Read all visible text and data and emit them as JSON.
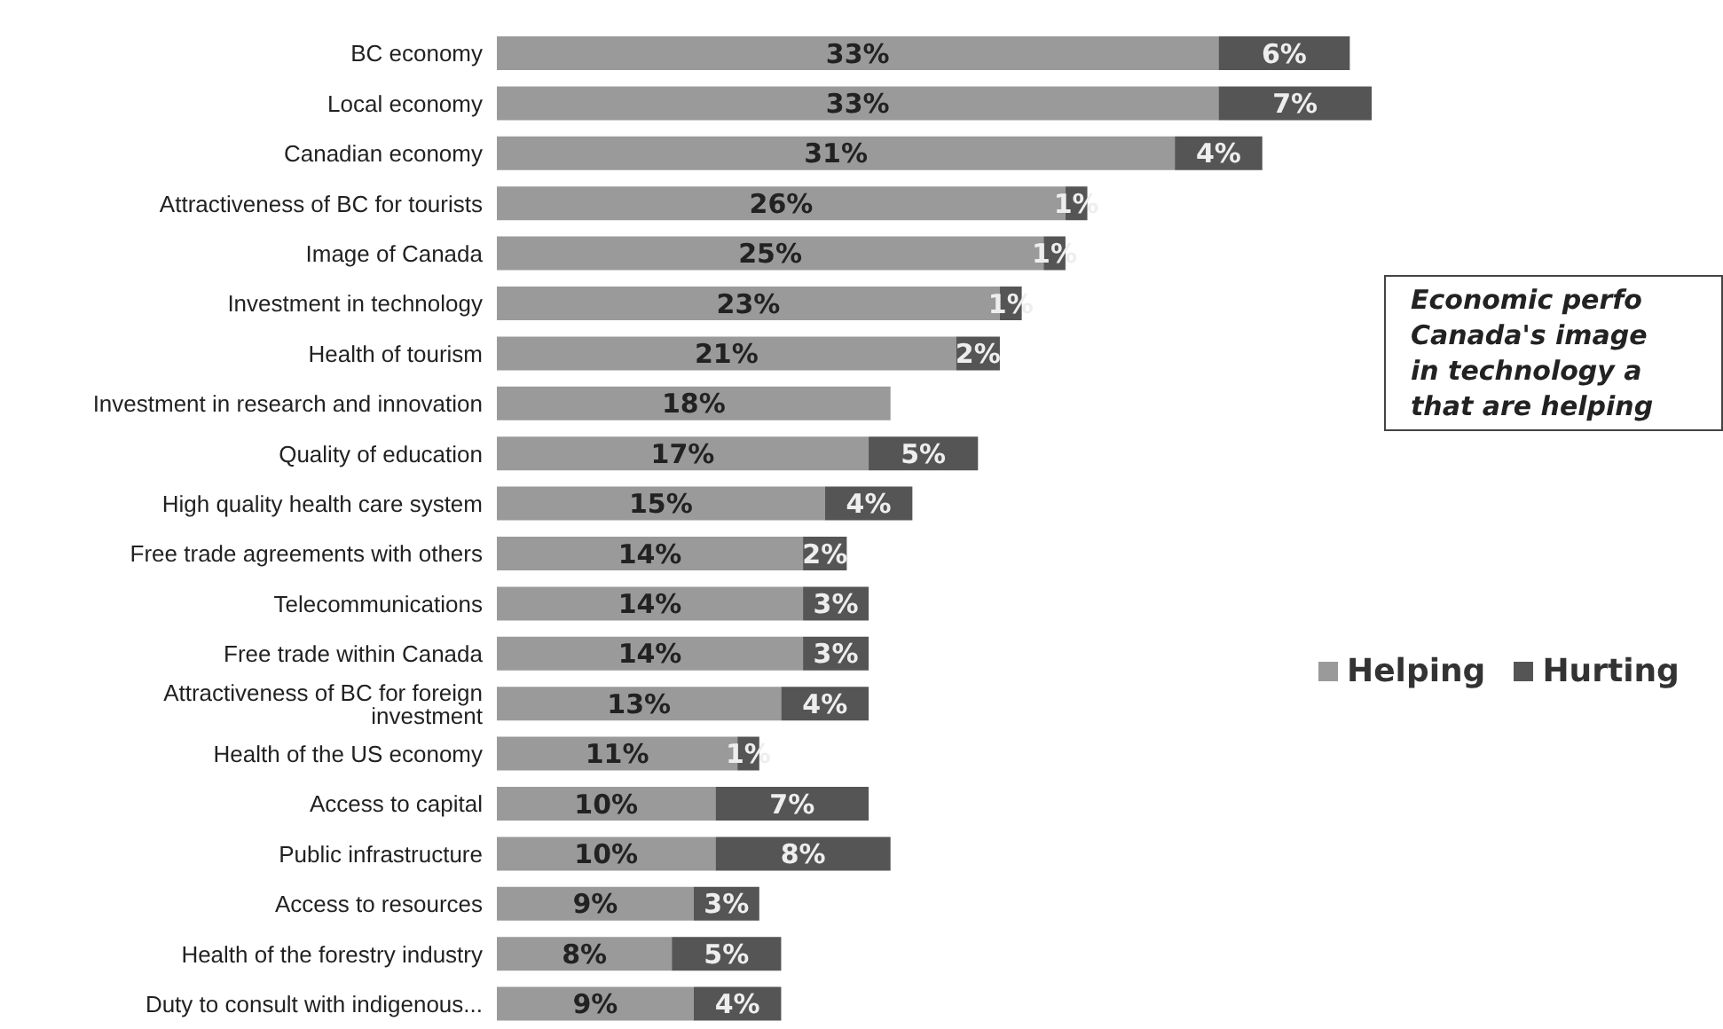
{
  "chart_data": {
    "type": "bar",
    "orientation": "horizontal",
    "stacked": true,
    "legend": "right",
    "tick_labels": "y",
    "categories": [
      "BC economy",
      "Local economy",
      "Canadian economy",
      "Attractiveness of BC for tourists",
      "Image of Canada",
      "Investment in technology",
      "Health of tourism",
      "Investment in research and innovation",
      "Quality of education",
      "High quality health care system",
      "Free trade agreements with others",
      "Telecommunications",
      "Free trade within Canada",
      "Attractiveness of BC for foreign investment",
      "Health of the US economy",
      "Access to capital",
      "Public infrastructure",
      "Access to resources",
      "Health of the forestry industry",
      "Duty to consult with indigenous..."
    ],
    "series": [
      {
        "name": "Helping",
        "color": "#9a9a9a",
        "values": [
          33,
          33,
          31,
          26,
          25,
          23,
          21,
          18,
          17,
          15,
          14,
          14,
          14,
          13,
          11,
          10,
          10,
          9,
          8,
          9
        ],
        "value_labels": [
          "33%",
          "33%",
          "31%",
          "26%",
          "25%",
          "23%",
          "21%",
          "18%",
          "17%",
          "15%",
          "14%",
          "14%",
          "14%",
          "13%",
          "11%",
          "10%",
          "10%",
          "9%",
          "8%",
          "9%"
        ]
      },
      {
        "name": "Hurting",
        "color": "#555555",
        "values": [
          6,
          7,
          4,
          1,
          1,
          1,
          2,
          null,
          5,
          4,
          2,
          3,
          3,
          4,
          1,
          7,
          8,
          3,
          5,
          4
        ],
        "value_labels": [
          "6%",
          "7%",
          "4%",
          "1%",
          "1%",
          "1%",
          "2%",
          null,
          "5%",
          "4%",
          "2%",
          "3%",
          "3%",
          "4%",
          "1%",
          "7%",
          "8%",
          "3%",
          "5%",
          "4%"
        ]
      }
    ],
    "annotations": [
      "Economic perfo\nCanada's image\nin technology a\nthat are helping"
    ]
  }
}
